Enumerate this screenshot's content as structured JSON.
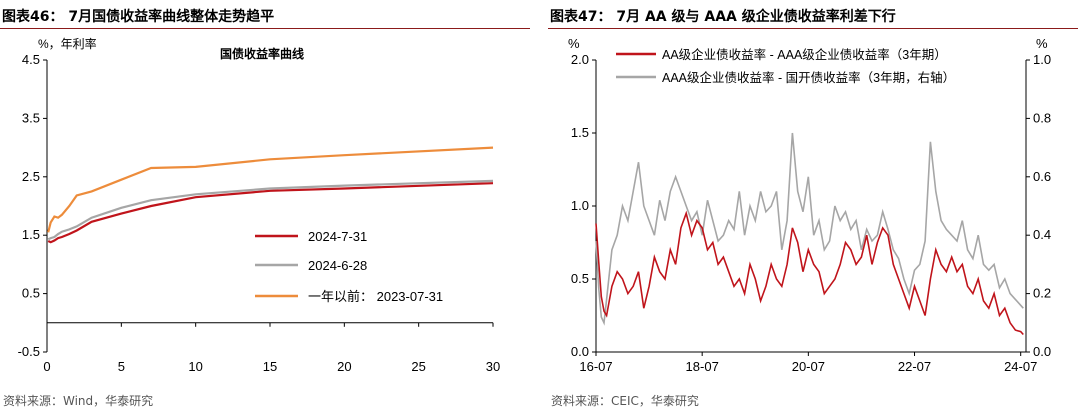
{
  "figures": [
    {
      "id": "fig46",
      "title": "图表46：  7月国债收益率曲线整体走势趋平",
      "source": "资料来源：Wind，华泰研究"
    },
    {
      "id": "fig47",
      "title": "图表47：  7月 AA 级与 AAA 级企业债收益率利差下行",
      "source": "资料来源：CEIC，华泰研究"
    }
  ],
  "colors": {
    "red": "#c0141b",
    "grey": "#a6a6a6",
    "orange": "#ed8c3b",
    "title_rule": "#8b1a1a"
  },
  "chart_data": [
    {
      "type": "line",
      "title": "国债收益率曲线",
      "unit_label": "%，年利率",
      "xlim": [
        0,
        30
      ],
      "ylim": [
        -0.5,
        4.5
      ],
      "xticks": [
        "0",
        "5",
        "10",
        "15",
        "20",
        "25",
        "30"
      ],
      "yticks": [
        "-0.5",
        "0.5",
        "1.5",
        "2.5",
        "3.5",
        "4.5"
      ],
      "legend_position": "lower-right",
      "grid": false,
      "series": [
        {
          "name": "2024-7-31",
          "color": "#c0141b",
          "x": [
            0.08,
            0.25,
            0.5,
            0.75,
            1,
            1.5,
            2,
            3,
            5,
            7,
            10,
            15,
            20,
            30
          ],
          "y": [
            1.4,
            1.38,
            1.41,
            1.45,
            1.47,
            1.52,
            1.58,
            1.73,
            1.87,
            2.0,
            2.15,
            2.26,
            2.3,
            2.39
          ]
        },
        {
          "name": "2024-6-28",
          "color": "#a6a6a6",
          "x": [
            0.08,
            0.25,
            0.5,
            0.75,
            1,
            1.5,
            2,
            3,
            5,
            7,
            10,
            15,
            20,
            30
          ],
          "y": [
            1.43,
            1.45,
            1.47,
            1.52,
            1.56,
            1.6,
            1.65,
            1.8,
            1.97,
            2.1,
            2.2,
            2.3,
            2.35,
            2.43
          ]
        },
        {
          "name": "一年以前：  2023-07-31",
          "color": "#ed8c3b",
          "x": [
            0.08,
            0.25,
            0.5,
            0.75,
            1,
            1.5,
            2,
            3,
            5,
            7,
            10,
            15,
            20,
            30
          ],
          "y": [
            1.55,
            1.72,
            1.82,
            1.8,
            1.85,
            2.0,
            2.18,
            2.25,
            2.45,
            2.65,
            2.67,
            2.8,
            2.87,
            3.0
          ]
        }
      ]
    },
    {
      "type": "line",
      "unit_label_left": "%",
      "unit_label_right": "%",
      "ylim_left": [
        0.0,
        2.0
      ],
      "ylim_right": [
        0.0,
        1.0
      ],
      "yticks_left": [
        "0.0",
        "0.5",
        "1.0",
        "1.5",
        "2.0"
      ],
      "yticks_right": [
        "0.0",
        "0.2",
        "0.4",
        "0.6",
        "0.8",
        "1.0"
      ],
      "xticks": [
        "16-07",
        "18-07",
        "20-07",
        "22-07",
        "24-07"
      ],
      "xtick_years": [
        2016.5,
        2018.5,
        2020.5,
        2022.5,
        2024.5
      ],
      "xlim": [
        2016.5,
        2024.6
      ],
      "legend_position": "top",
      "grid": false,
      "series": [
        {
          "name": "AA级企业债收益率 - AAA级企业债收益率（3年期）",
          "color": "#c0141b",
          "axis": "left",
          "x": [
            2016.5,
            2016.55,
            2016.6,
            2016.65,
            2016.7,
            2016.8,
            2016.9,
            2017.0,
            2017.1,
            2017.2,
            2017.3,
            2017.4,
            2017.5,
            2017.6,
            2017.7,
            2017.8,
            2017.9,
            2018.0,
            2018.1,
            2018.2,
            2018.3,
            2018.4,
            2018.5,
            2018.6,
            2018.7,
            2018.8,
            2018.9,
            2019.0,
            2019.1,
            2019.2,
            2019.3,
            2019.4,
            2019.5,
            2019.6,
            2019.7,
            2019.8,
            2019.9,
            2020.0,
            2020.1,
            2020.2,
            2020.3,
            2020.4,
            2020.5,
            2020.6,
            2020.7,
            2020.8,
            2020.9,
            2021.0,
            2021.1,
            2021.2,
            2021.3,
            2021.4,
            2021.5,
            2021.6,
            2021.7,
            2021.8,
            2021.9,
            2022.0,
            2022.1,
            2022.2,
            2022.3,
            2022.4,
            2022.5,
            2022.6,
            2022.7,
            2022.8,
            2022.9,
            2023.0,
            2023.1,
            2023.2,
            2023.3,
            2023.4,
            2023.5,
            2023.6,
            2023.7,
            2023.8,
            2023.9,
            2024.0,
            2024.1,
            2024.2,
            2024.3,
            2024.4,
            2024.5,
            2024.55
          ],
          "y": [
            0.88,
            0.62,
            0.38,
            0.28,
            0.25,
            0.45,
            0.55,
            0.5,
            0.4,
            0.45,
            0.55,
            0.3,
            0.45,
            0.65,
            0.55,
            0.5,
            0.7,
            0.6,
            0.85,
            0.95,
            0.8,
            0.9,
            0.85,
            0.7,
            0.75,
            0.6,
            0.65,
            0.55,
            0.45,
            0.5,
            0.4,
            0.6,
            0.5,
            0.35,
            0.45,
            0.6,
            0.5,
            0.45,
            0.6,
            0.85,
            0.75,
            0.55,
            0.7,
            0.6,
            0.55,
            0.4,
            0.45,
            0.5,
            0.6,
            0.75,
            0.7,
            0.6,
            0.65,
            0.8,
            0.6,
            0.75,
            0.85,
            0.8,
            0.6,
            0.5,
            0.4,
            0.3,
            0.45,
            0.35,
            0.25,
            0.5,
            0.7,
            0.6,
            0.55,
            0.65,
            0.55,
            0.6,
            0.45,
            0.4,
            0.5,
            0.35,
            0.3,
            0.4,
            0.25,
            0.3,
            0.2,
            0.15,
            0.14,
            0.12
          ]
        },
        {
          "name": "AAA级企业债收益率 - 国开债收益率（3年期，右轴）",
          "color": "#a6a6a6",
          "axis": "right",
          "x": [
            2016.5,
            2016.55,
            2016.6,
            2016.65,
            2016.7,
            2016.8,
            2016.9,
            2017.0,
            2017.1,
            2017.2,
            2017.3,
            2017.4,
            2017.5,
            2017.6,
            2017.7,
            2017.8,
            2017.9,
            2018.0,
            2018.1,
            2018.2,
            2018.3,
            2018.4,
            2018.5,
            2018.6,
            2018.7,
            2018.8,
            2018.9,
            2019.0,
            2019.1,
            2019.2,
            2019.3,
            2019.4,
            2019.5,
            2019.6,
            2019.7,
            2019.8,
            2019.9,
            2020.0,
            2020.1,
            2020.2,
            2020.3,
            2020.4,
            2020.5,
            2020.6,
            2020.7,
            2020.8,
            2020.9,
            2021.0,
            2021.1,
            2021.2,
            2021.3,
            2021.4,
            2021.5,
            2021.6,
            2021.7,
            2021.8,
            2021.9,
            2022.0,
            2022.1,
            2022.2,
            2022.3,
            2022.4,
            2022.5,
            2022.6,
            2022.7,
            2022.8,
            2022.9,
            2023.0,
            2023.1,
            2023.2,
            2023.3,
            2023.4,
            2023.5,
            2023.6,
            2023.7,
            2023.8,
            2023.9,
            2024.0,
            2024.1,
            2024.2,
            2024.3,
            2024.4,
            2024.5,
            2024.55
          ],
          "y": [
            0.38,
            0.22,
            0.12,
            0.1,
            0.18,
            0.35,
            0.4,
            0.5,
            0.45,
            0.55,
            0.65,
            0.5,
            0.45,
            0.4,
            0.52,
            0.45,
            0.55,
            0.6,
            0.55,
            0.5,
            0.45,
            0.48,
            0.4,
            0.52,
            0.45,
            0.38,
            0.4,
            0.45,
            0.42,
            0.55,
            0.4,
            0.5,
            0.45,
            0.55,
            0.48,
            0.5,
            0.55,
            0.35,
            0.45,
            0.75,
            0.55,
            0.48,
            0.6,
            0.4,
            0.45,
            0.35,
            0.38,
            0.5,
            0.45,
            0.48,
            0.42,
            0.45,
            0.35,
            0.42,
            0.38,
            0.4,
            0.48,
            0.42,
            0.35,
            0.32,
            0.25,
            0.2,
            0.28,
            0.3,
            0.38,
            0.72,
            0.55,
            0.45,
            0.42,
            0.4,
            0.38,
            0.45,
            0.35,
            0.32,
            0.4,
            0.3,
            0.28,
            0.3,
            0.22,
            0.25,
            0.2,
            0.18,
            0.16,
            0.15
          ]
        }
      ]
    }
  ]
}
